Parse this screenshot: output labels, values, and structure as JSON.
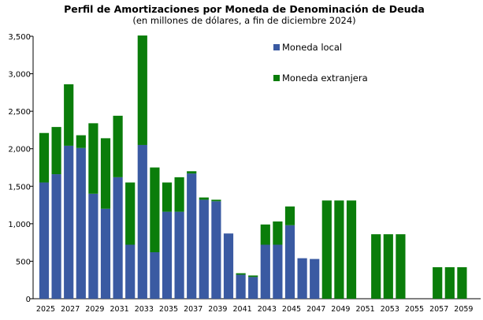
{
  "chart_data": {
    "type": "bar",
    "stacked": true,
    "title": "Perfil de Amortizaciones por Moneda de Denominación de Deuda",
    "subtitle": "(en millones de dólares, a fin de diciembre 2024)",
    "xlabel": "",
    "ylabel": "",
    "ylim": [
      0,
      3500
    ],
    "yticks": [
      0,
      500,
      1000,
      1500,
      2000,
      2500,
      3000,
      3500
    ],
    "ytick_labels": [
      "0",
      "500",
      "1,000",
      "1,500",
      "2,000",
      "2,500",
      "3,000",
      "3,500"
    ],
    "grid": false,
    "legend_position": "top-right",
    "categories": [
      "2025",
      "2026",
      "2027",
      "2028",
      "2029",
      "2030",
      "2031",
      "2032",
      "2033",
      "2034",
      "2035",
      "2036",
      "2037",
      "2038",
      "2039",
      "2040",
      "2041",
      "2042",
      "2043",
      "2044",
      "2045",
      "2046",
      "2047",
      "2048",
      "2049",
      "2050",
      "2051",
      "2052",
      "2053",
      "2054",
      "2055",
      "2056",
      "2057",
      "2058",
      "2059",
      "2060"
    ],
    "xtick_labels": [
      "2025",
      "",
      "2027",
      "",
      "2029",
      "",
      "2031",
      "",
      "2033",
      "",
      "2035",
      "",
      "2037",
      "",
      "2039",
      "",
      "2041",
      "",
      "2043",
      "",
      "2045",
      "",
      "2047",
      "",
      "2049",
      "",
      "2051",
      "",
      "2053",
      "",
      "2055",
      "",
      "2057",
      "",
      "2059",
      ""
    ],
    "series": [
      {
        "name": "Moneda local",
        "color": "#3a5aa2",
        "values": [
          1550,
          1660,
          2040,
          2010,
          1400,
          1200,
          1620,
          720,
          2050,
          620,
          1160,
          1160,
          1670,
          1320,
          1300,
          870,
          320,
          290,
          720,
          720,
          980,
          540,
          530,
          0,
          0,
          0,
          0,
          0,
          0,
          0,
          0,
          0,
          0,
          0,
          0,
          0
        ]
      },
      {
        "name": "Moneda extranjera",
        "color": "#0a7d0a",
        "values": [
          660,
          630,
          820,
          170,
          940,
          940,
          820,
          830,
          1460,
          1130,
          390,
          460,
          30,
          30,
          20,
          0,
          20,
          20,
          270,
          310,
          250,
          0,
          0,
          1310,
          1310,
          1310,
          0,
          860,
          860,
          860,
          0,
          0,
          420,
          420,
          420,
          0
        ]
      }
    ]
  }
}
